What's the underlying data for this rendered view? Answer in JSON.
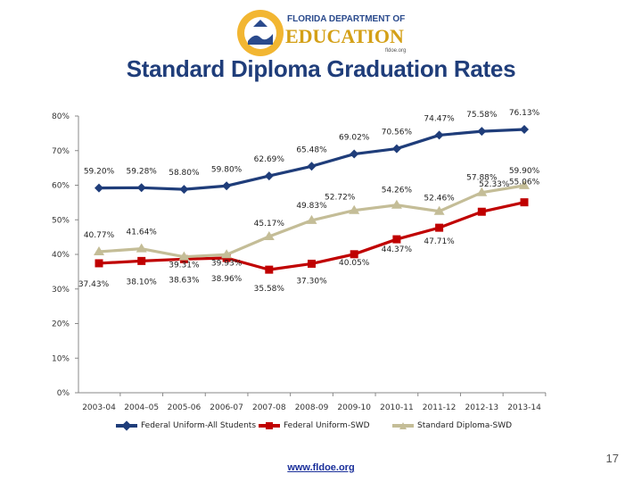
{
  "logo": {
    "line1": "FLORIDA DEPARTMENT OF",
    "line2": "EDUCATION",
    "line3": "fldoe.org"
  },
  "page_number": "17",
  "footer_url": "www.fldoe.org",
  "colors": {
    "federal_all": "#1f3d7a",
    "federal_swd": "#c00000",
    "standard_swd": "#c4bd97"
  },
  "chart_data": {
    "type": "line",
    "title": "Standard Diploma Graduation Rates",
    "categories": [
      "2003-04",
      "2004–05",
      "2005-06",
      "2006-07",
      "2007-08",
      "2008-09",
      "2009-10",
      "2010-11",
      "2011-12",
      "2012-13",
      "2013-14"
    ],
    "ylim": [
      0,
      80
    ],
    "yticks": [
      "0%",
      "10%",
      "20%",
      "30%",
      "40%",
      "50%",
      "60%",
      "70%",
      "80%"
    ],
    "grid": false,
    "legend": "bottom",
    "series": [
      {
        "name": "Federal Uniform-All Students",
        "values": [
          59.2,
          59.28,
          58.8,
          59.8,
          62.69,
          65.48,
          69.02,
          70.56,
          74.47,
          75.58,
          76.13
        ],
        "labels": [
          "59.20%",
          "59.28%",
          "58.80%",
          "59.80%",
          "62.69%",
          "65.48%",
          "69.02%",
          "70.56%",
          "74.47%",
          "75.58%",
          "76.13%"
        ]
      },
      {
        "name": "Federal Uniform-SWD",
        "values": [
          37.43,
          38.1,
          38.63,
          38.96,
          35.58,
          37.3,
          40.05,
          44.37,
          47.71,
          52.33,
          55.06
        ],
        "labels": [
          "37.43%",
          "38.10%",
          "38.63%",
          "38.96%",
          "35.58%",
          "37.30%",
          "40.05%",
          "44.37%",
          "47.71%",
          "52.33%",
          "55.06%"
        ]
      },
      {
        "name": "Standard Diploma-SWD",
        "values": [
          40.77,
          41.64,
          39.31,
          39.93,
          45.17,
          49.83,
          52.72,
          54.26,
          52.46,
          57.88,
          59.9
        ],
        "labels": [
          "40.77%",
          "41.64%",
          "39.31%",
          "39.93%",
          "45.17%",
          "49.83%",
          "52.72%",
          "54.26%",
          "52.46%",
          "57.88%",
          "59.90%"
        ]
      }
    ]
  }
}
